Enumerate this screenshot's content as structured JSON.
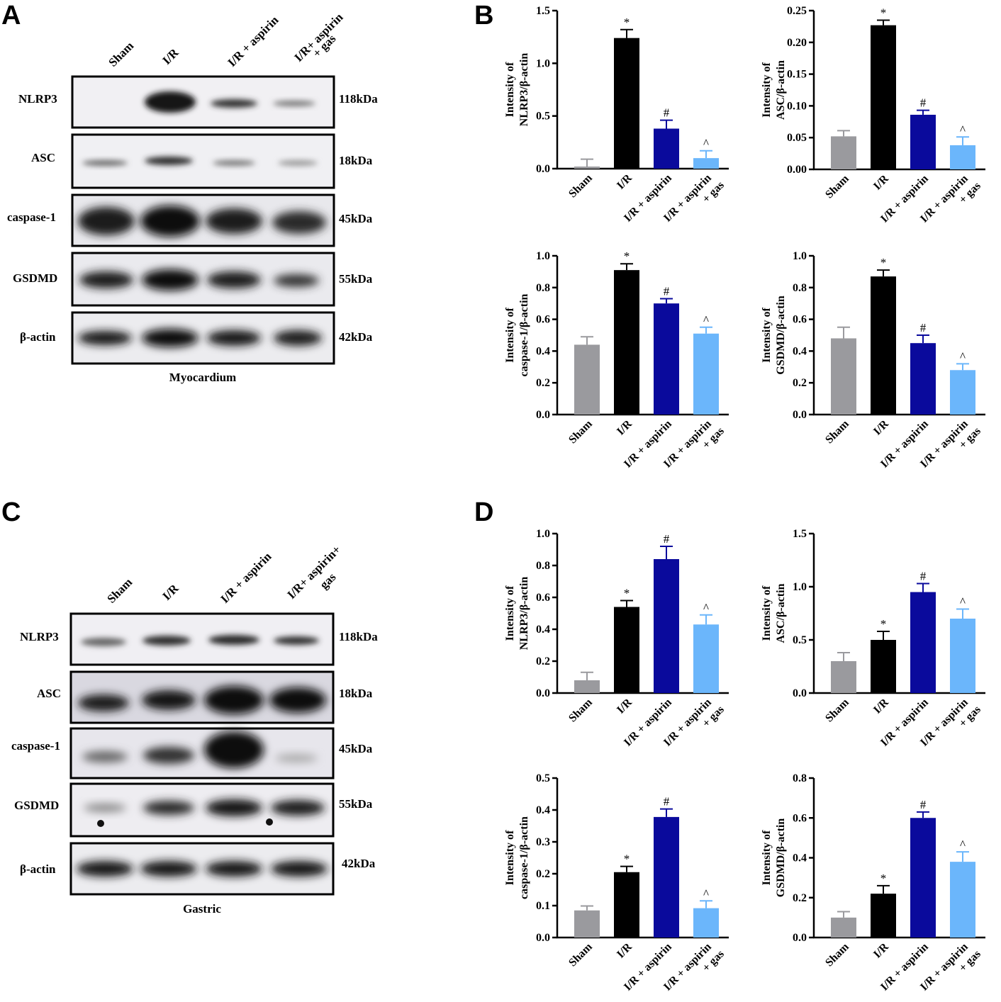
{
  "colors": {
    "Sham": "#9a9a9e",
    "I/R": "#000000",
    "I/R + aspirin": "#0a0a9c",
    "I/R + aspirin + gas": "#6bb6fb"
  },
  "panels": {
    "A": "A",
    "B": "B",
    "C": "C",
    "D": "D"
  },
  "blot_A": {
    "lanes": [
      "Sham",
      "I/R",
      "I/R + aspirin",
      "I/R+ aspirin",
      "+ gas"
    ],
    "tissue": "Myocardium",
    "rows": [
      {
        "label": "NLRP3",
        "kda": "118kDa"
      },
      {
        "label": "ASC",
        "kda": "18kDa"
      },
      {
        "label": "caspase-1",
        "kda": "45kDa"
      },
      {
        "label": "GSDMD",
        "kda": "55kDa"
      },
      {
        "label": "β-actin",
        "kda": "42kDa"
      }
    ]
  },
  "blot_C": {
    "lanes": [
      "Sham",
      "I/R",
      "I/R + aspirin",
      "I/R+ aspirin+",
      "gas"
    ],
    "tissue": "Gastric",
    "rows": [
      {
        "label": "NLRP3",
        "kda": "118kDa"
      },
      {
        "label": "ASC",
        "kda": "18kDa"
      },
      {
        "label": "caspase-1",
        "kda": "45kDa"
      },
      {
        "label": "GSDMD",
        "kda": "55kDa"
      },
      {
        "label": "β-actin",
        "kda": "42kDa"
      }
    ]
  },
  "chart_data": [
    {
      "type": "bar",
      "panel": "B",
      "categories": [
        "Sham",
        "I/R",
        "I/R + aspirin",
        "I/R + aspirin + gas"
      ],
      "category_lines": [
        [
          "Sham"
        ],
        [
          "I/R"
        ],
        [
          "I/R + aspirin"
        ],
        [
          "I/R + aspirin",
          "+ gas"
        ]
      ],
      "values": [
        0.02,
        1.24,
        0.38,
        0.1
      ],
      "errors": [
        0.07,
        0.08,
        0.08,
        0.07
      ],
      "annotations": [
        "",
        "*",
        "#",
        "^"
      ],
      "ylabel_lines": [
        "Intensity of",
        "NLRP3/β-actin"
      ],
      "ylim": [
        0,
        1.5
      ],
      "yticks": [
        "0.0",
        "0.5",
        "1.0",
        "1.5"
      ],
      "grid": false
    },
    {
      "type": "bar",
      "panel": "B",
      "categories": [
        "Sham",
        "I/R",
        "I/R + aspirin",
        "I/R + aspirin + gas"
      ],
      "category_lines": [
        [
          "Sham"
        ],
        [
          "I/R"
        ],
        [
          "I/R + aspirin"
        ],
        [
          "I/R + aspirin",
          "+ gas"
        ]
      ],
      "values": [
        0.052,
        0.227,
        0.086,
        0.038
      ],
      "errors": [
        0.009,
        0.008,
        0.007,
        0.013
      ],
      "annotations": [
        "",
        "*",
        "#",
        "^"
      ],
      "ylabel_lines": [
        "Intensity of",
        "ASC/β-actin"
      ],
      "ylim": [
        0,
        0.25
      ],
      "yticks": [
        "0.00",
        "0.05",
        "0.10",
        "0.15",
        "0.20",
        "0.25"
      ],
      "grid": false
    },
    {
      "type": "bar",
      "panel": "B",
      "categories": [
        "Sham",
        "I/R",
        "I/R + aspirin",
        "I/R + aspirin + gas"
      ],
      "category_lines": [
        [
          "Sham"
        ],
        [
          "I/R"
        ],
        [
          "I/R + aspirin"
        ],
        [
          "I/R + aspirin",
          "+ gas"
        ]
      ],
      "values": [
        0.44,
        0.91,
        0.7,
        0.51
      ],
      "errors": [
        0.05,
        0.04,
        0.03,
        0.04
      ],
      "annotations": [
        "",
        "*",
        "#",
        "^"
      ],
      "ylabel_lines": [
        "Intensity of",
        "caspase-1/β-actin"
      ],
      "ylim": [
        0,
        1.0
      ],
      "yticks": [
        "0.0",
        "0.2",
        "0.4",
        "0.6",
        "0.8",
        "1.0"
      ],
      "grid": false
    },
    {
      "type": "bar",
      "panel": "B",
      "categories": [
        "Sham",
        "I/R",
        "I/R + aspirin",
        "I/R + aspirin + gas"
      ],
      "category_lines": [
        [
          "Sham"
        ],
        [
          "I/R"
        ],
        [
          "I/R + aspirin"
        ],
        [
          "I/R + aspirin",
          "+ gas"
        ]
      ],
      "values": [
        0.48,
        0.87,
        0.45,
        0.28
      ],
      "errors": [
        0.07,
        0.04,
        0.05,
        0.04
      ],
      "annotations": [
        "",
        "*",
        "#",
        "^"
      ],
      "ylabel_lines": [
        "Intensity of",
        "GSDMD/β-actin"
      ],
      "ylim": [
        0,
        1.0
      ],
      "yticks": [
        "0.0",
        "0.2",
        "0.4",
        "0.6",
        "0.8",
        "1.0"
      ],
      "grid": false
    },
    {
      "type": "bar",
      "panel": "D",
      "categories": [
        "Sham",
        "I/R",
        "I/R + aspirin",
        "I/R + aspirin + gas"
      ],
      "category_lines": [
        [
          "Sham"
        ],
        [
          "I/R"
        ],
        [
          "I/R + aspirin"
        ],
        [
          "I/R + aspirin",
          "+ gas"
        ]
      ],
      "values": [
        0.08,
        0.54,
        0.84,
        0.43
      ],
      "errors": [
        0.05,
        0.04,
        0.08,
        0.06
      ],
      "annotations": [
        "",
        "*",
        "#",
        "^"
      ],
      "ylabel_lines": [
        "Intensity of",
        "NLRP3/β-actin"
      ],
      "ylim": [
        0,
        1.0
      ],
      "yticks": [
        "0.0",
        "0.2",
        "0.4",
        "0.6",
        "0.8",
        "1.0"
      ],
      "grid": false
    },
    {
      "type": "bar",
      "panel": "D",
      "categories": [
        "Sham",
        "I/R",
        "I/R + aspirin",
        "I/R + aspirin + gas"
      ],
      "category_lines": [
        [
          "Sham"
        ],
        [
          "I/R"
        ],
        [
          "I/R + aspirin"
        ],
        [
          "I/R + aspirin",
          "+ gas"
        ]
      ],
      "values": [
        0.3,
        0.5,
        0.95,
        0.7
      ],
      "errors": [
        0.08,
        0.08,
        0.08,
        0.09
      ],
      "annotations": [
        "",
        "*",
        "#",
        "^"
      ],
      "ylabel_lines": [
        "Intensity of",
        "ASC/β-actin"
      ],
      "ylim": [
        0,
        1.5
      ],
      "yticks": [
        "0.0",
        "0.5",
        "1.0",
        "1.5"
      ],
      "grid": false
    },
    {
      "type": "bar",
      "panel": "D",
      "categories": [
        "Sham",
        "I/R",
        "I/R + aspirin",
        "I/R + aspirin + gas"
      ],
      "category_lines": [
        [
          "Sham"
        ],
        [
          "I/R"
        ],
        [
          "I/R + aspirin"
        ],
        [
          "I/R + aspirin",
          "+ gas"
        ]
      ],
      "values": [
        0.085,
        0.205,
        0.378,
        0.092
      ],
      "errors": [
        0.014,
        0.018,
        0.025,
        0.023
      ],
      "annotations": [
        "",
        "*",
        "#",
        "^"
      ],
      "ylabel_lines": [
        "Intensity of",
        "caspase-1/β-actin"
      ],
      "ylim": [
        0,
        0.5
      ],
      "yticks": [
        "0.0",
        "0.1",
        "0.2",
        "0.3",
        "0.4",
        "0.5"
      ],
      "grid": false
    },
    {
      "type": "bar",
      "panel": "D",
      "categories": [
        "Sham",
        "I/R",
        "I/R + aspirin",
        "I/R + aspirin + gas"
      ],
      "category_lines": [
        [
          "Sham"
        ],
        [
          "I/R"
        ],
        [
          "I/R + aspirin"
        ],
        [
          "I/R + aspirin",
          "+ gas"
        ]
      ],
      "values": [
        0.1,
        0.22,
        0.6,
        0.38
      ],
      "errors": [
        0.03,
        0.04,
        0.03,
        0.05
      ],
      "annotations": [
        "",
        "*",
        "#",
        "^"
      ],
      "ylabel_lines": [
        "Intensity of",
        "GSDMD/β-actin"
      ],
      "ylim": [
        0,
        0.8
      ],
      "yticks": [
        "0.0",
        "0.2",
        "0.4",
        "0.6",
        "0.8"
      ],
      "grid": false
    }
  ]
}
